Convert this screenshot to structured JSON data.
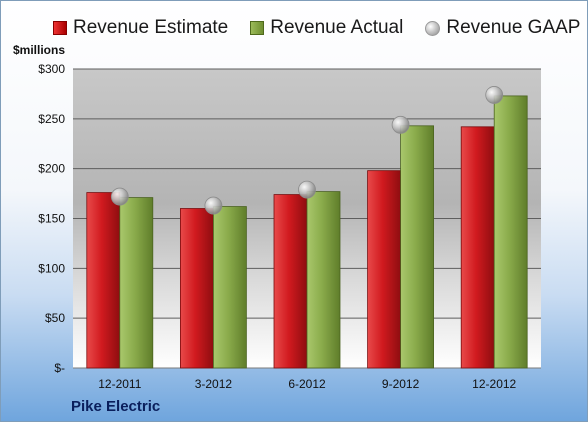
{
  "legend": {
    "estimate": "Revenue Estimate",
    "actual": "Revenue Actual",
    "gaap": "Revenue GAAP"
  },
  "unit_label": "$millions",
  "company": "Pike Electric",
  "colors": {
    "estimate": "#c0171d",
    "actual": "#8aab4b",
    "gaap": "#b9b9b9"
  },
  "chart_data": {
    "type": "bar",
    "categories": [
      "12-2011",
      "3-2012",
      "6-2012",
      "9-2012",
      "12-2012"
    ],
    "series": [
      {
        "name": "Revenue Estimate",
        "type": "bar",
        "values": [
          176,
          160,
          174,
          198,
          242
        ]
      },
      {
        "name": "Revenue Actual",
        "type": "bar",
        "values": [
          171,
          162,
          177,
          243,
          273
        ]
      },
      {
        "name": "Revenue GAAP",
        "type": "scatter",
        "values": [
          172,
          163,
          179,
          244,
          274
        ]
      }
    ],
    "ylim": [
      0,
      300
    ],
    "yticks": [
      0,
      50,
      100,
      150,
      200,
      250,
      300
    ],
    "ytick_labels": [
      "$-",
      "$50",
      "$100",
      "$150",
      "$200",
      "$250",
      "$300"
    ],
    "ylabel": "$millions",
    "grid": true,
    "legend_position": "top"
  }
}
